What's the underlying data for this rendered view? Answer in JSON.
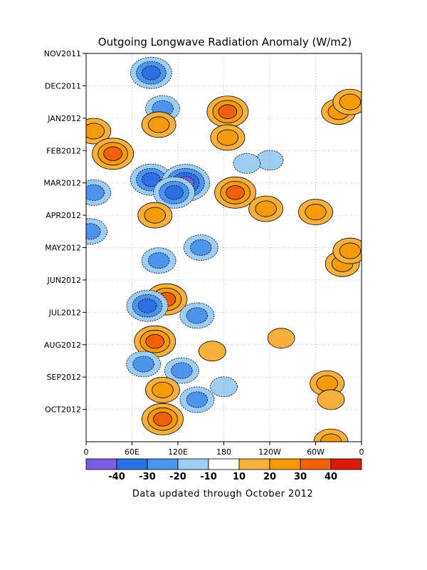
{
  "chart_data": {
    "type": "heatmap",
    "title": "Outgoing Longwave Radiation Anomaly (W/m2)",
    "footer": "Data updated through October 2012",
    "x_ticks": [
      "0",
      "60E",
      "120E",
      "180",
      "120W",
      "60W",
      "0"
    ],
    "y_ticks": [
      "NOV2011",
      "DEC2011",
      "JAN2012",
      "FEB2012",
      "MAR2012",
      "APR2012",
      "MAY2012",
      "JUN2012",
      "JUL2012",
      "AUG2012",
      "SEP2012",
      "OCT2012"
    ],
    "colorbar": {
      "labels": [
        "-40",
        "-30",
        "-20",
        "-10",
        "10",
        "20",
        "30",
        "40"
      ],
      "colors": [
        "#7b5ce0",
        "#2b6fe0",
        "#4c93ec",
        "#9ecdf4",
        "#ffffff",
        "#f8b03c",
        "#f59a0a",
        "#f0600a",
        "#db1a0a"
      ]
    },
    "grid": "dotted",
    "features": [
      {
        "lon": 85,
        "month": 0.6,
        "value": -35
      },
      {
        "lon": 100,
        "month": 1.7,
        "value": -20
      },
      {
        "lon": 95,
        "month": 2.2,
        "value": 20
      },
      {
        "lon": 85,
        "month": 3.9,
        "value": -30
      },
      {
        "lon": 130,
        "month": 4.0,
        "value": -40
      },
      {
        "lon": 115,
        "month": 4.3,
        "value": -30
      },
      {
        "lon": 185,
        "month": 1.8,
        "value": 30
      },
      {
        "lon": 185,
        "month": 2.6,
        "value": 25
      },
      {
        "lon": 195,
        "month": 4.3,
        "value": 30
      },
      {
        "lon": 235,
        "month": 4.8,
        "value": 20
      },
      {
        "lon": 90,
        "month": 5.0,
        "value": 20
      },
      {
        "lon": 95,
        "month": 6.4,
        "value": -20
      },
      {
        "lon": 150,
        "month": 6.0,
        "value": -20
      },
      {
        "lon": 105,
        "month": 7.6,
        "value": 30
      },
      {
        "lon": 80,
        "month": 7.8,
        "value": -30
      },
      {
        "lon": 145,
        "month": 8.1,
        "value": -20
      },
      {
        "lon": 90,
        "month": 8.9,
        "value": 30
      },
      {
        "lon": 75,
        "month": 9.6,
        "value": -20
      },
      {
        "lon": 125,
        "month": 9.8,
        "value": -20
      },
      {
        "lon": 100,
        "month": 10.4,
        "value": 20
      },
      {
        "lon": 145,
        "month": 10.7,
        "value": -20
      },
      {
        "lon": 180,
        "month": 10.3,
        "value": -10
      },
      {
        "lon": 100,
        "month": 11.3,
        "value": 30
      },
      {
        "lon": 165,
        "month": 9.2,
        "value": 10
      },
      {
        "lon": 10,
        "month": 2.4,
        "value": 20
      },
      {
        "lon": 35,
        "month": 3.1,
        "value": 30
      },
      {
        "lon": 10,
        "month": 4.3,
        "value": -20
      },
      {
        "lon": 5,
        "month": 5.5,
        "value": -20
      },
      {
        "lon": 330,
        "month": 1.8,
        "value": 20
      },
      {
        "lon": 345,
        "month": 1.5,
        "value": 20
      },
      {
        "lon": 335,
        "month": 6.5,
        "value": 20
      },
      {
        "lon": 345,
        "month": 6.1,
        "value": 20
      },
      {
        "lon": 300,
        "month": 4.9,
        "value": 20
      },
      {
        "lon": 240,
        "month": 3.3,
        "value": -10
      },
      {
        "lon": 210,
        "month": 3.4,
        "value": -10
      },
      {
        "lon": 255,
        "month": 8.8,
        "value": 10
      },
      {
        "lon": 315,
        "month": 10.2,
        "value": 20
      },
      {
        "lon": 320,
        "month": 10.7,
        "value": 10
      },
      {
        "lon": 320,
        "month": 12.0,
        "value": 20
      }
    ]
  }
}
